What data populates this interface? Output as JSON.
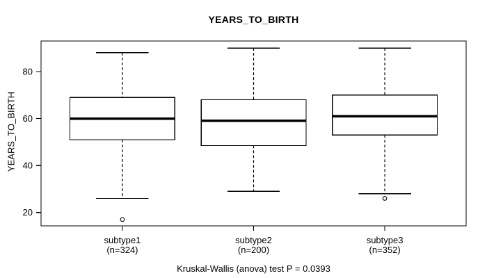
{
  "chart_data": {
    "type": "boxplot",
    "title": "YEARS_TO_BIRTH",
    "ylabel": "YEARS_TO_BIRTH",
    "xlabel": "",
    "caption": "Kruskal-Wallis (anova) test P = 0.0393",
    "yticks": [
      20,
      40,
      60,
      80
    ],
    "ylim": [
      14.3,
      93.0
    ],
    "xlim": [
      0.38,
      3.62
    ],
    "grid": false,
    "legend": "none",
    "colors": {
      "line": "#000000",
      "box_fill": "#ffffff",
      "background": "#ffffff"
    },
    "groups": [
      {
        "label": "subtype1",
        "count_label": "(n=324)",
        "n": 324,
        "whisker_low": 26,
        "q1": 51,
        "median": 60,
        "q3": 69,
        "whisker_high": 88,
        "outliers": [
          17
        ]
      },
      {
        "label": "subtype2",
        "count_label": "(n=200)",
        "n": 200,
        "whisker_low": 29,
        "q1": 48.5,
        "median": 59,
        "q3": 68,
        "whisker_high": 90,
        "outliers": []
      },
      {
        "label": "subtype3",
        "count_label": "(n=352)",
        "n": 352,
        "whisker_low": 28,
        "q1": 53,
        "median": 61,
        "q3": 70,
        "whisker_high": 90,
        "outliers": [
          26
        ]
      }
    ]
  }
}
